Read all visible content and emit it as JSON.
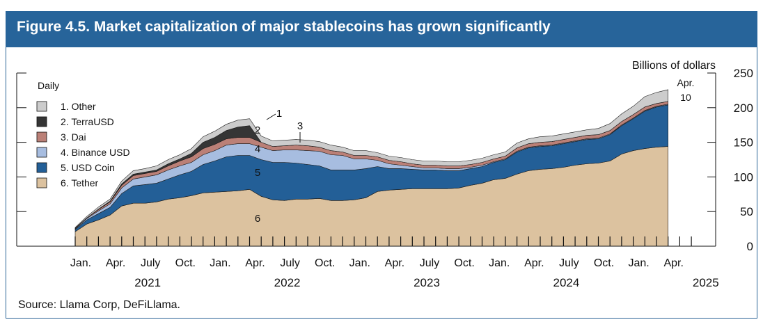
{
  "title": "Figure 4.5. Market capitalization of major stablecoins has grown significantly",
  "source": "Source: Llama Corp, DeFiLlama.",
  "colors": {
    "title_bg": "#27649a",
    "Tether": "#dcc29f",
    "USD Coin": "#235f97",
    "Binance USD": "#a7bde0",
    "Dai": "#bb8077",
    "TerraUSD": "#353535",
    "Other": "#cccccc"
  },
  "chart_data": {
    "type": "area",
    "stacked": true,
    "frequency_label": "Daily",
    "ylabel": "Billions of dollars",
    "ylim": [
      0,
      250
    ],
    "yticks": [
      0,
      50,
      100,
      150,
      200,
      250
    ],
    "x_tick_labels": [
      "Jan.",
      "Apr.",
      "July",
      "Oct.",
      "Jan.",
      "Apr.",
      "July",
      "Oct.",
      "Jan.",
      "Apr.",
      "July",
      "Oct.",
      "Jan.",
      "Apr.",
      "July",
      "Oct.",
      "Jan.",
      "Apr."
    ],
    "year_labels": [
      "2021",
      "2022",
      "2023",
      "2024",
      "2025"
    ],
    "x": [
      "2021-01",
      "2021-02",
      "2021-03",
      "2021-04",
      "2021-05",
      "2021-06",
      "2021-07",
      "2021-08",
      "2021-09",
      "2021-10",
      "2021-11",
      "2021-12",
      "2022-01",
      "2022-02",
      "2022-03",
      "2022-04",
      "2022-05",
      "2022-06",
      "2022-07",
      "2022-08",
      "2022-09",
      "2022-10",
      "2022-11",
      "2022-12",
      "2023-01",
      "2023-02",
      "2023-03",
      "2023-04",
      "2023-05",
      "2023-06",
      "2023-07",
      "2023-08",
      "2023-09",
      "2023-10",
      "2023-11",
      "2023-12",
      "2024-01",
      "2024-02",
      "2024-03",
      "2024-04",
      "2024-05",
      "2024-06",
      "2024-07",
      "2024-08",
      "2024-09",
      "2024-10",
      "2024-11",
      "2024-12",
      "2025-01",
      "2025-02",
      "2025-03",
      "2025-04"
    ],
    "series": [
      {
        "name": "Tether",
        "label": "6. Tether",
        "number": "6",
        "values": [
          21,
          32,
          38,
          45,
          58,
          62,
          62,
          64,
          68,
          70,
          73,
          77,
          78,
          79,
          80,
          82,
          72,
          67,
          66,
          68,
          68,
          69,
          66,
          66,
          67,
          70,
          79,
          81,
          82,
          83,
          83,
          83,
          83,
          84,
          88,
          91,
          96,
          98,
          104,
          109,
          111,
          112,
          114,
          117,
          119,
          120,
          123,
          133,
          138,
          141,
          143,
          144
        ]
      },
      {
        "name": "USD Coin",
        "label": "5. USD Coin",
        "number": "5",
        "values": [
          3,
          6,
          9,
          11,
          18,
          25,
          27,
          27,
          29,
          33,
          35,
          41,
          45,
          50,
          51,
          49,
          53,
          54,
          55,
          52,
          50,
          47,
          44,
          44,
          43,
          42,
          36,
          31,
          30,
          28,
          27,
          27,
          26,
          25,
          24,
          24,
          25,
          27,
          32,
          33,
          33,
          33,
          34,
          34,
          35,
          35,
          38,
          41,
          46,
          54,
          58,
          60
        ]
      },
      {
        "name": "Binance USD",
        "label": "4. Binance USD",
        "number": "4",
        "values": [
          1,
          2,
          4,
          5,
          8,
          10,
          11,
          12,
          13,
          13,
          13,
          14,
          15,
          17,
          17,
          17,
          18,
          17,
          18,
          19,
          20,
          21,
          22,
          21,
          16,
          14,
          9,
          7,
          5,
          4,
          3,
          3,
          3,
          3,
          2,
          2,
          1,
          1,
          1,
          1,
          1,
          1,
          1,
          1,
          1,
          1,
          1,
          1,
          1,
          1,
          1,
          1
        ]
      },
      {
        "name": "Dai",
        "label": "3. Dai",
        "number": "3",
        "values": [
          1,
          1,
          2,
          3,
          4,
          5,
          5,
          5,
          6,
          7,
          8,
          9,
          9,
          9,
          9,
          9,
          7,
          6,
          6,
          7,
          7,
          6,
          6,
          5,
          5,
          5,
          5,
          5,
          5,
          4,
          4,
          4,
          4,
          4,
          4,
          4,
          4,
          4,
          5,
          5,
          5,
          5,
          5,
          5,
          5,
          5,
          5,
          5,
          5,
          5,
          4,
          4
        ]
      },
      {
        "name": "TerraUSD",
        "label": "2. TerraUSD",
        "number": "2",
        "values": [
          0,
          0,
          0.5,
          1,
          2,
          2,
          2,
          2,
          3,
          3,
          5,
          9,
          10,
          12,
          15,
          17,
          0,
          0,
          0,
          0,
          0,
          0,
          0,
          0,
          0,
          0,
          0,
          0,
          0,
          0,
          0,
          0,
          0,
          0,
          0,
          0,
          0,
          0,
          0,
          0,
          0,
          0,
          0,
          0,
          0,
          0,
          0,
          0,
          0,
          0,
          0,
          0
        ]
      },
      {
        "name": "Other",
        "label": "1. Other",
        "number": "1",
        "values": [
          1,
          2,
          3,
          3,
          4,
          5,
          5,
          6,
          6,
          6,
          7,
          8,
          9,
          9,
          10,
          10,
          9,
          8,
          8,
          8,
          8,
          8,
          8,
          7,
          7,
          7,
          6,
          6,
          6,
          6,
          6,
          6,
          6,
          6,
          6,
          6,
          6,
          6,
          7,
          7,
          8,
          8,
          8,
          8,
          8,
          9,
          10,
          11,
          12,
          15,
          16,
          17
        ]
      }
    ],
    "annotations": [
      {
        "text": "Apr.",
        "target": "last point"
      },
      {
        "text": "10",
        "target": "last point"
      }
    ]
  }
}
